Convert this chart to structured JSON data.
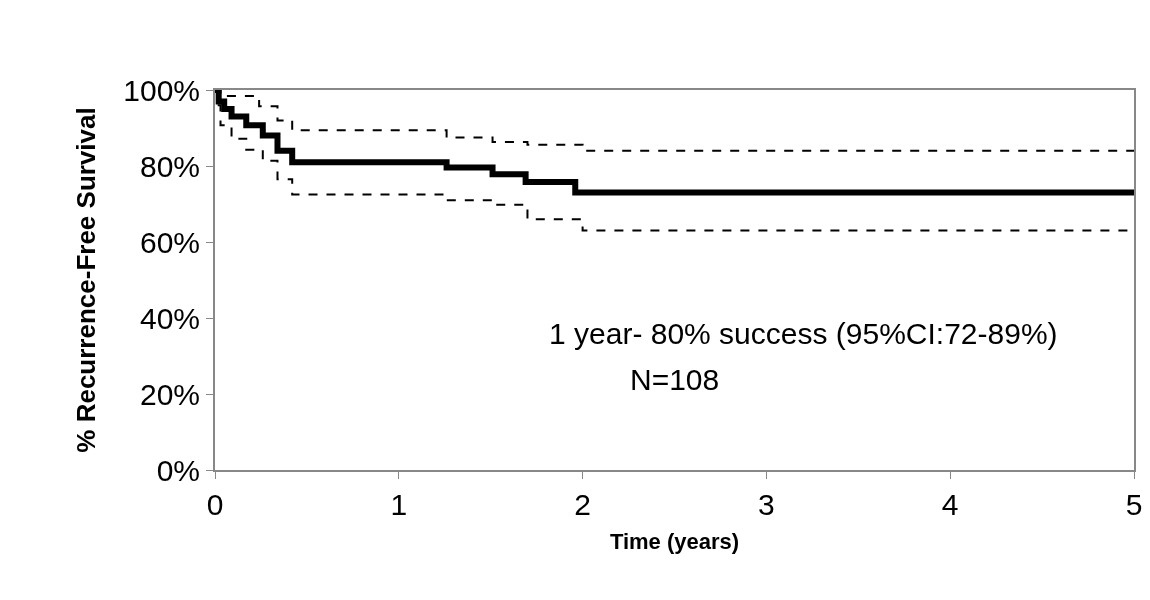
{
  "chart_data": {
    "type": "step",
    "xlabel": "Time (years)",
    "ylabel": "% Recurrence-Free Survival",
    "xlim": [
      0,
      5
    ],
    "xticks": [
      0,
      1,
      2,
      3,
      4,
      5
    ],
    "ylim": [
      0,
      100
    ],
    "yticks": [
      {
        "value": 0,
        "label": "0%"
      },
      {
        "value": 20,
        "label": "20%"
      },
      {
        "value": 40,
        "label": "40%"
      },
      {
        "value": 60,
        "label": "60%"
      },
      {
        "value": 80,
        "label": "80%"
      },
      {
        "value": 100,
        "label": "100%"
      }
    ],
    "series": [
      {
        "color": "#000000",
        "line_style": "dashed",
        "x": [
          0,
          0.03,
          0.24,
          0.34,
          0.42,
          1.26,
          1.51,
          1.7,
          2.0,
          5
        ],
        "values": [
          100,
          98.4,
          95.7,
          92,
          89.4,
          87.5,
          86.3,
          85.6,
          84,
          84
        ]
      },
      {
        "color": "#000000",
        "line_style": "dashed",
        "x": [
          0,
          0.02,
          0.03,
          0.09,
          0.17,
          0.26,
          0.34,
          0.42,
          1.26,
          1.51,
          1.7,
          2.0,
          5
        ],
        "values": [
          100,
          96,
          90.7,
          87.2,
          84.3,
          81.4,
          76.5,
          72.5,
          71,
          69.8,
          66,
          63,
          63
        ]
      },
      {
        "color": "#000000",
        "line_style": "solid",
        "x": [
          0,
          0.02,
          0.05,
          0.09,
          0.17,
          0.26,
          0.34,
          0.42,
          1.26,
          1.51,
          1.69,
          1.96,
          5
        ],
        "values": [
          100,
          97,
          95,
          93,
          90.7,
          88,
          84,
          81,
          79.6,
          77.8,
          75.8,
          73,
          73
        ]
      }
    ],
    "annotations": [
      "1 year- 80% success (95%CI:72-89%)",
      "N=108"
    ]
  }
}
